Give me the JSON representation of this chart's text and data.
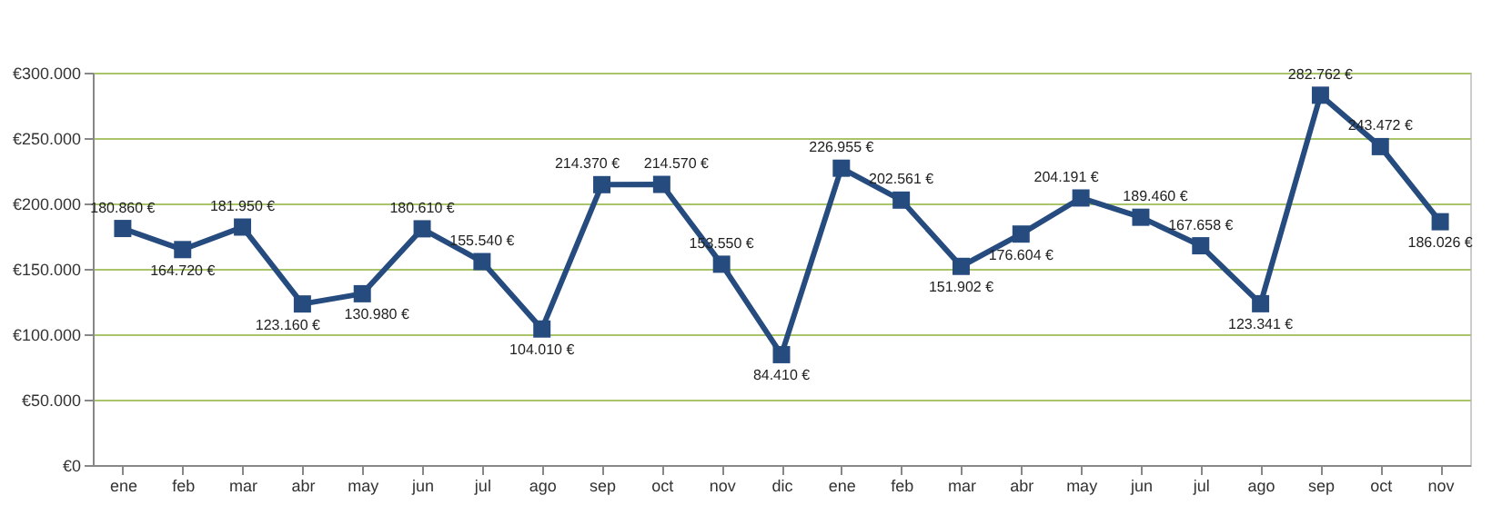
{
  "chart_data": {
    "type": "line",
    "categories": [
      "ene",
      "feb",
      "mar",
      "abr",
      "may",
      "jun",
      "jul",
      "ago",
      "sep",
      "oct",
      "nov",
      "dic",
      "ene",
      "feb",
      "mar",
      "abr",
      "may",
      "jun",
      "jul",
      "ago",
      "sep",
      "oct",
      "nov"
    ],
    "series": [
      {
        "color": "#254b7f",
        "values": [
          180860,
          164720,
          181950,
          123160,
          130980,
          180610,
          155540,
          104010,
          214370,
          214570,
          153550,
          84410,
          226955,
          202561,
          151902,
          176604,
          204191,
          189460,
          167658,
          123341,
          282762,
          243472,
          186026
        ],
        "value_labels": [
          "180.860 €",
          "164.720 €",
          "181.950 €",
          "123.160 €",
          "130.980 €",
          "180.610 €",
          "155.540 €",
          "104.010 €",
          "214.370 €",
          "214.570 €",
          "153.550 €",
          "84.410 €",
          "226.955 €",
          "202.561 €",
          "151.902 €",
          "176.604 €",
          "204.191 €",
          "189.460 €",
          "167.658 €",
          "123.341 €",
          "282.762 €",
          "243.472 €",
          "186.026 €"
        ]
      }
    ],
    "ylim": [
      0,
      300000
    ],
    "yticks": [
      {
        "value": 0,
        "label": "€0"
      },
      {
        "value": 50000,
        "label": "€50.000"
      },
      {
        "value": 100000,
        "label": "€100.000"
      },
      {
        "value": 150000,
        "label": "€150.000"
      },
      {
        "value": 200000,
        "label": "€200.000"
      },
      {
        "value": 250000,
        "label": "€250.000"
      },
      {
        "value": 300000,
        "label": "€300.000"
      }
    ],
    "grid": "y",
    "marker": "square",
    "line_style": "solid",
    "legend": false
  }
}
